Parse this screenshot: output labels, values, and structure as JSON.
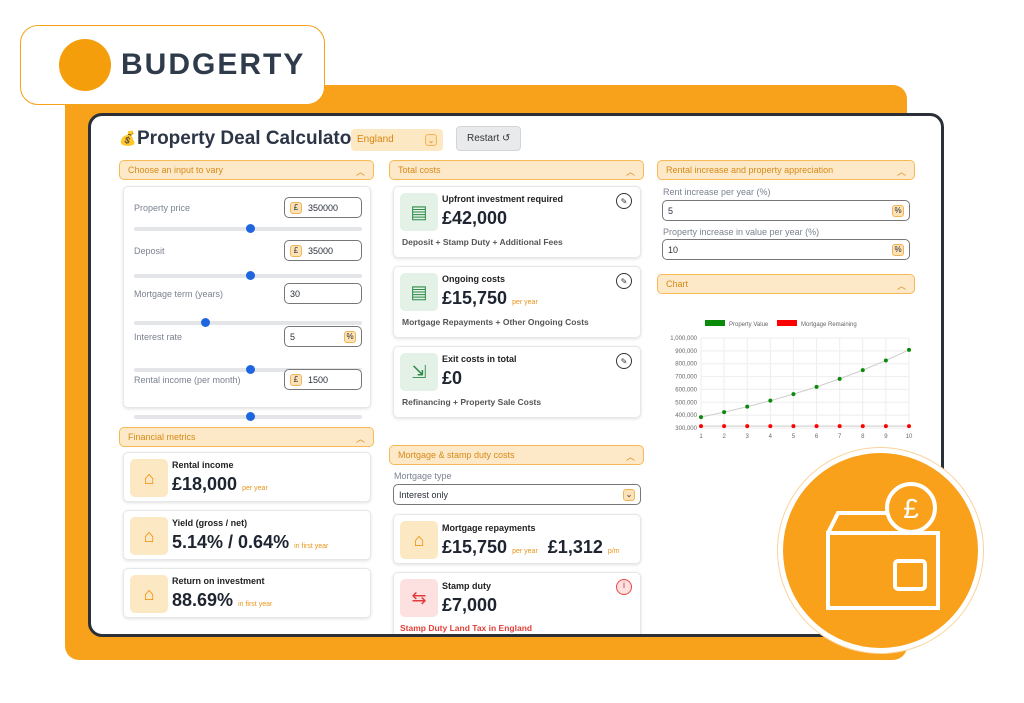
{
  "brand": {
    "name": "BUDGERTY"
  },
  "header": {
    "title": "Property Deal Calculator",
    "region": "England",
    "restart": "Restart"
  },
  "inputs": {
    "section": "Choose an input to vary",
    "fields": [
      {
        "label": "Property price",
        "value": "350000",
        "prefix": "£",
        "slider": 0.5
      },
      {
        "label": "Deposit",
        "value": "35000",
        "prefix": "£",
        "slider": 0.5
      },
      {
        "label": "Mortgage term (years)",
        "value": "30",
        "prefix": "",
        "slider": 0.3
      },
      {
        "label": "Interest rate",
        "value": "5",
        "prefix": "",
        "suffix": "%",
        "slider": 0.5
      },
      {
        "label": "Rental income (per month)",
        "value": "1500",
        "prefix": "£",
        "slider": 0.5
      }
    ]
  },
  "metrics": {
    "section": "Financial metrics",
    "items": [
      {
        "label": "Rental income",
        "value": "£18,000",
        "sub": "per year"
      },
      {
        "label": "Yield (gross / net)",
        "value": "5.14% / 0.64%",
        "sub": "in first year"
      },
      {
        "label": "Return on investment",
        "value": "88.69%",
        "sub": "in first year"
      }
    ]
  },
  "costs": {
    "section": "Total costs",
    "items": [
      {
        "label": "Upfront investment required",
        "value": "£42,000",
        "sub": "",
        "note": "Deposit + Stamp Duty + Additional Fees"
      },
      {
        "label": "Ongoing costs",
        "value": "£15,750",
        "sub": "per year",
        "note": "Mortgage Repayments + Other Ongoing Costs"
      },
      {
        "label": "Exit costs in total",
        "value": "£0",
        "sub": "",
        "note": "Refinancing + Property Sale Costs"
      }
    ]
  },
  "mortgage": {
    "section": "Mortgage & stamp duty costs",
    "type_label": "Mortgage type",
    "type_value": "Interest only",
    "repay_label": "Mortgage repayments",
    "repay_year": "£15,750",
    "repay_year_sub": "per year",
    "repay_month": "£1,312",
    "repay_month_sub": "p/m",
    "stamp_label": "Stamp duty",
    "stamp_value": "£7,000",
    "stamp_note": "Stamp Duty Land Tax in England"
  },
  "appreciation": {
    "section": "Rental increase and property appreciation",
    "rent_label": "Rent increase per year (%)",
    "rent_value": "5",
    "value_label": "Property increase in value per year (%)",
    "value_value": "10",
    "suffix": "%"
  },
  "chart_section": "Chart",
  "chart_data": {
    "type": "line",
    "x": [
      1,
      2,
      3,
      4,
      5,
      6,
      7,
      8,
      9,
      10
    ],
    "series": [
      {
        "name": "Property Value",
        "color": "#0a8a0a",
        "values": [
          385000,
          423500,
          465850,
          512435,
          563679,
          620047,
          682051,
          750256,
          825282,
          907810
        ]
      },
      {
        "name": "Mortgage Remaining",
        "color": "#ff0000",
        "values": [
          315000,
          315000,
          315000,
          315000,
          315000,
          315000,
          315000,
          315000,
          315000,
          315000
        ]
      }
    ],
    "ylim": [
      300000,
      1000000
    ],
    "yticks": [
      "1,000,000",
      "900,000",
      "800,000",
      "700,000",
      "600,000",
      "500,000",
      "400,000",
      "300,000"
    ],
    "grid": true,
    "legend": "top"
  }
}
